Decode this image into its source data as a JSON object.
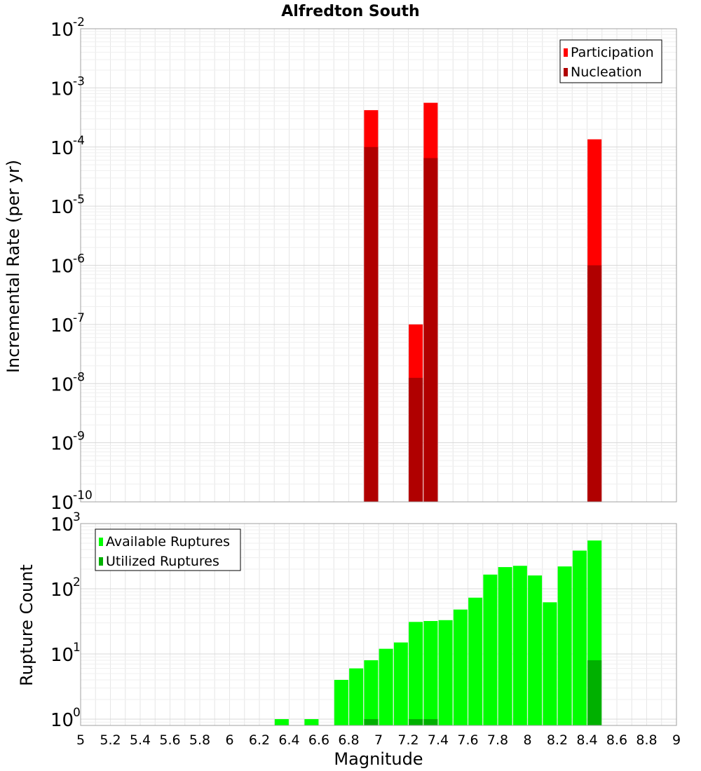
{
  "title": "Alfredton South",
  "chart_data": [
    {
      "type": "bar",
      "panel": "top",
      "ylabel": "Incremental Rate (per yr)",
      "yscale": "log",
      "ylim": [
        1e-10,
        0.01
      ],
      "y_tick_exponents": [
        "-2",
        "-3",
        "-4",
        "-5",
        "-6",
        "-7",
        "-8",
        "-9",
        "-10"
      ],
      "y_tick_base": "10",
      "grid": true,
      "legend_position": "top-right",
      "series": [
        {
          "name": "Participation",
          "color": "#ff0000",
          "x": [
            6.95,
            7.25,
            7.35,
            8.45
          ],
          "values": [
            0.00042,
            1e-07,
            0.00056,
            0.000135
          ]
        },
        {
          "name": "Nucleation",
          "color": "#b00000",
          "x": [
            6.95,
            7.25,
            7.35,
            8.45
          ],
          "values": [
            0.0001,
            1.25e-08,
            6.5e-05,
            1e-06
          ]
        }
      ]
    },
    {
      "type": "bar",
      "panel": "bottom",
      "xlabel": "Magnitude",
      "ylabel": "Rupture Count",
      "yscale": "log",
      "ylim": [
        0.8,
        1000
      ],
      "y_tick_exponents": [
        "3",
        "2",
        "1",
        "0"
      ],
      "y_tick_base": "10",
      "xlim": [
        5,
        9
      ],
      "x_ticks": [
        "5",
        "5.2",
        "5.4",
        "5.6",
        "5.8",
        "6",
        "6.2",
        "6.4",
        "6.6",
        "6.8",
        "7",
        "7.2",
        "7.4",
        "7.6",
        "7.8",
        "8",
        "8.2",
        "8.4",
        "8.6",
        "8.8",
        "9"
      ],
      "grid": true,
      "legend_position": "top-left",
      "series": [
        {
          "name": "Available Ruptures",
          "color": "#00ff00",
          "x": [
            6.35,
            6.55,
            6.75,
            6.85,
            6.95,
            7.05,
            7.15,
            7.25,
            7.35,
            7.45,
            7.55,
            7.65,
            7.75,
            7.85,
            7.95,
            8.05,
            8.15,
            8.25,
            8.35,
            8.45
          ],
          "values": [
            1,
            1,
            4,
            6,
            8,
            12,
            15,
            31,
            32,
            33,
            48,
            73,
            165,
            215,
            225,
            160,
            62,
            220,
            385,
            550
          ]
        },
        {
          "name": "Utilized Ruptures",
          "color": "#00b000",
          "x": [
            6.95,
            7.25,
            7.35,
            8.45
          ],
          "values": [
            1,
            1,
            1,
            8
          ]
        }
      ]
    }
  ]
}
